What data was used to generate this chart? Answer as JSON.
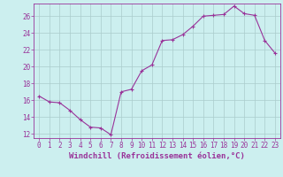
{
  "x": [
    0,
    1,
    2,
    3,
    4,
    5,
    6,
    7,
    8,
    9,
    10,
    11,
    12,
    13,
    14,
    15,
    16,
    17,
    18,
    19,
    20,
    21,
    22,
    23
  ],
  "y": [
    16.5,
    15.8,
    15.7,
    14.8,
    13.7,
    12.8,
    12.7,
    11.9,
    17.0,
    17.3,
    19.5,
    20.2,
    23.1,
    23.2,
    23.8,
    24.8,
    26.0,
    26.1,
    26.2,
    27.2,
    26.3,
    26.1,
    23.1,
    21.6
  ],
  "line_color": "#993399",
  "marker": "+",
  "marker_size": 3,
  "bg_color": "#ccefef",
  "grid_color": "#aacccc",
  "xlabel": "Windchill (Refroidissement éolien,°C)",
  "ylabel": "",
  "xlim": [
    -0.5,
    23.5
  ],
  "ylim": [
    11.5,
    27.5
  ],
  "yticks": [
    12,
    14,
    16,
    18,
    20,
    22,
    24,
    26
  ],
  "xticks": [
    0,
    1,
    2,
    3,
    4,
    5,
    6,
    7,
    8,
    9,
    10,
    11,
    12,
    13,
    14,
    15,
    16,
    17,
    18,
    19,
    20,
    21,
    22,
    23
  ],
  "xtick_labels": [
    "0",
    "1",
    "2",
    "3",
    "4",
    "5",
    "6",
    "7",
    "8",
    "9",
    "10",
    "11",
    "12",
    "13",
    "14",
    "15",
    "16",
    "17",
    "18",
    "19",
    "20",
    "21",
    "22",
    "23"
  ],
  "tick_color": "#993399",
  "label_fontsize": 6.5,
  "tick_fontsize": 5.5,
  "linewidth": 0.8,
  "markeredgewidth": 0.8
}
